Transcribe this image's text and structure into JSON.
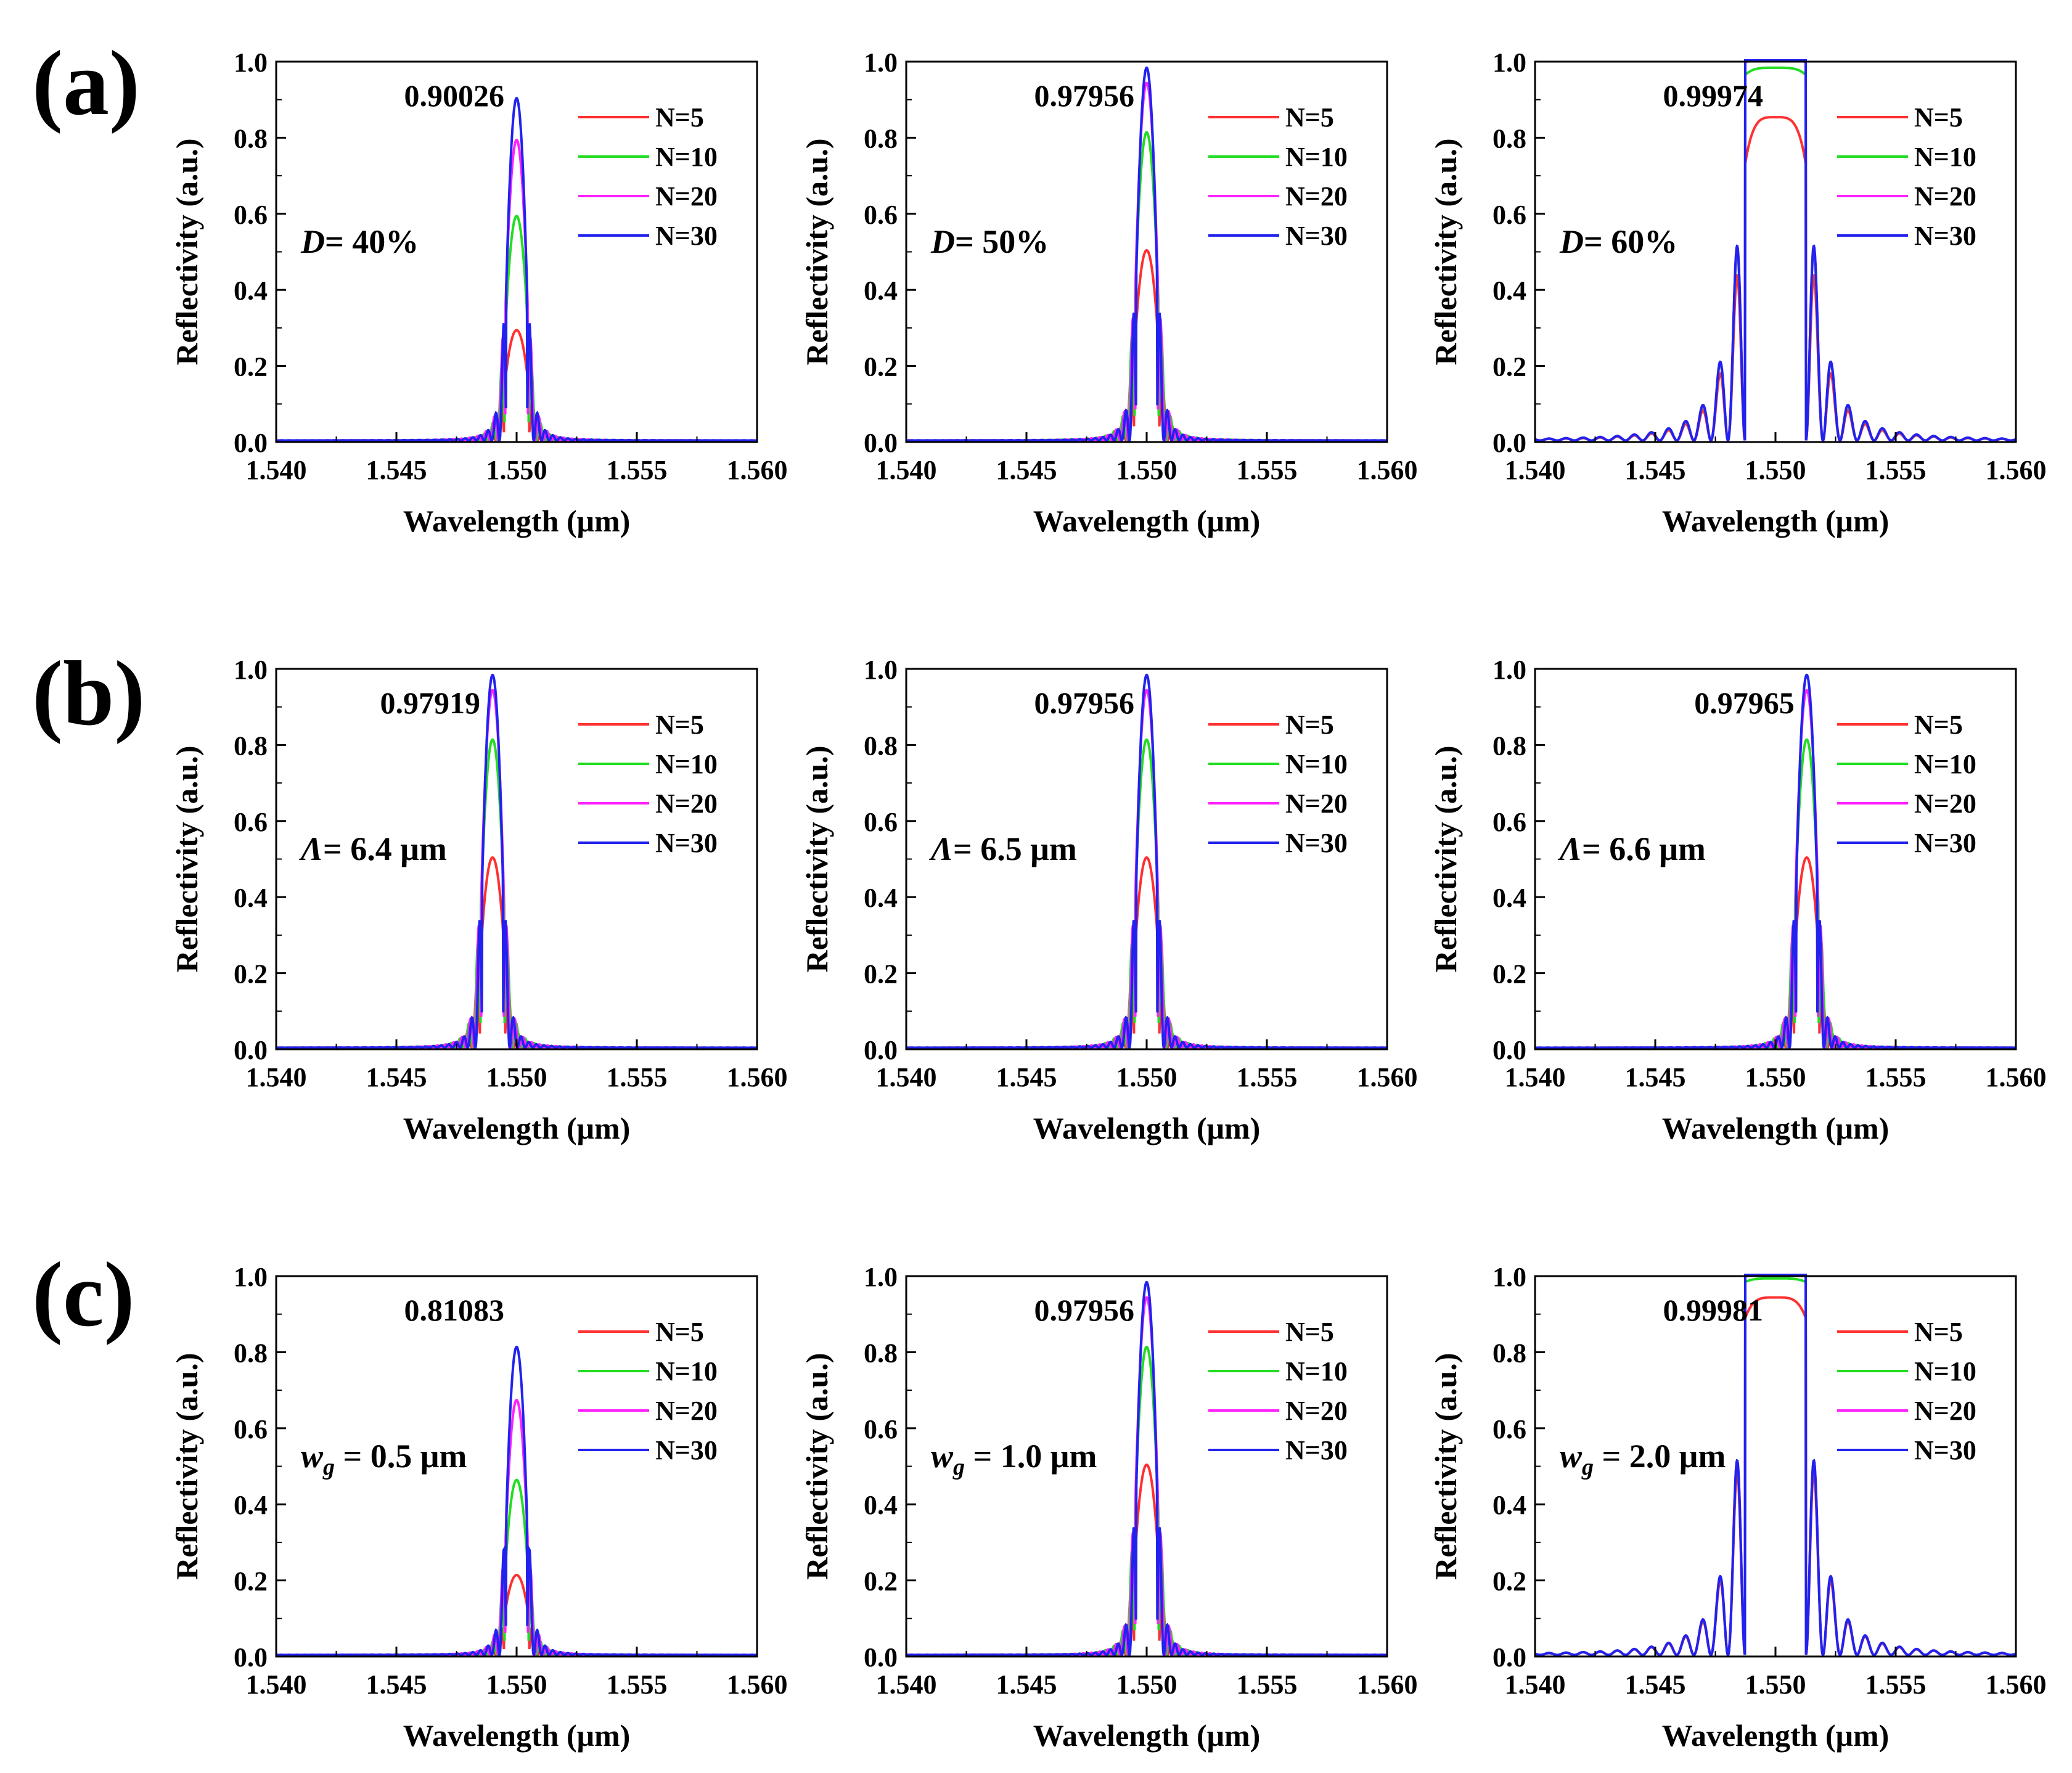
{
  "figure": {
    "rows": [
      {
        "label": "(a)"
      },
      {
        "label": "(b)"
      },
      {
        "label": "(c)"
      }
    ]
  },
  "chart_data": [
    {
      "type": "line",
      "row": "(a)",
      "panel": 1,
      "title": "",
      "xlabel": "Wavelength (μm)",
      "ylabel": "Reflectivity (a.u.)",
      "xlim": [
        1.54,
        1.56
      ],
      "ylim": [
        0.0,
        1.0
      ],
      "xticks": [
        "1.540",
        "1.545",
        "1.550",
        "1.555",
        "1.560"
      ],
      "yticks": [
        "0.0",
        "0.2",
        "0.4",
        "0.6",
        "0.8",
        "1.0"
      ],
      "peak_label": "0.90026",
      "param": {
        "sym": "D",
        "eq": "= 40%",
        "sub": ""
      },
      "center": 1.55,
      "flat": false,
      "legend_position": "top-right",
      "series": [
        {
          "name": "N=5",
          "color": "#ff3030",
          "peak": 0.29
        },
        {
          "name": "N=10",
          "color": "#22dd22",
          "peak": 0.59
        },
        {
          "name": "N=20",
          "color": "#ff22ff",
          "peak": 0.79
        },
        {
          "name": "N=30",
          "color": "#2222ee",
          "peak": 0.9
        }
      ]
    },
    {
      "type": "line",
      "row": "(a)",
      "panel": 2,
      "title": "",
      "xlabel": "Wavelength (μm)",
      "ylabel": "Reflectivity (a.u.)",
      "xlim": [
        1.54,
        1.56
      ],
      "ylim": [
        0.0,
        1.0
      ],
      "xticks": [
        "1.540",
        "1.545",
        "1.550",
        "1.555",
        "1.560"
      ],
      "yticks": [
        "0.0",
        "0.2",
        "0.4",
        "0.6",
        "0.8",
        "1.0"
      ],
      "peak_label": "0.97956",
      "param": {
        "sym": "D",
        "eq": "= 50%",
        "sub": ""
      },
      "center": 1.55,
      "flat": false,
      "legend_position": "top-right",
      "series": [
        {
          "name": "N=5",
          "color": "#ff3030",
          "peak": 0.5
        },
        {
          "name": "N=10",
          "color": "#22dd22",
          "peak": 0.81
        },
        {
          "name": "N=20",
          "color": "#ff22ff",
          "peak": 0.94
        },
        {
          "name": "N=30",
          "color": "#2222ee",
          "peak": 0.98
        }
      ]
    },
    {
      "type": "line",
      "row": "(a)",
      "panel": 3,
      "title": "",
      "xlabel": "Wavelength (μm)",
      "ylabel": "Reflectivity (a.u.)",
      "xlim": [
        1.54,
        1.56
      ],
      "ylim": [
        0.0,
        1.0
      ],
      "xticks": [
        "1.540",
        "1.545",
        "1.550",
        "1.555",
        "1.560"
      ],
      "yticks": [
        "0.0",
        "0.2",
        "0.4",
        "0.6",
        "0.8",
        "1.0"
      ],
      "peak_label": "0.99974",
      "param": {
        "sym": "D",
        "eq": "= 60%",
        "sub": ""
      },
      "center": 1.55,
      "flat": true,
      "legend_position": "top-right",
      "series": [
        {
          "name": "N=5",
          "color": "#ff3030",
          "peak": 0.85
        },
        {
          "name": "N=10",
          "color": "#22dd22",
          "peak": 0.98
        },
        {
          "name": "N=20",
          "color": "#ff22ff",
          "peak": 0.998
        },
        {
          "name": "N=30",
          "color": "#2222ee",
          "peak": 1.0
        }
      ]
    },
    {
      "type": "line",
      "row": "(b)",
      "panel": 1,
      "title": "",
      "xlabel": "Wavelength (μm)",
      "ylabel": "Reflectivity (a.u.)",
      "xlim": [
        1.54,
        1.56
      ],
      "ylim": [
        0.0,
        1.0
      ],
      "xticks": [
        "1.540",
        "1.545",
        "1.550",
        "1.555",
        "1.560"
      ],
      "yticks": [
        "0.0",
        "0.2",
        "0.4",
        "0.6",
        "0.8",
        "1.0"
      ],
      "peak_label": "0.97919",
      "param": {
        "sym": "Λ",
        "eq": "= 6.4 μm",
        "sub": ""
      },
      "center": 1.549,
      "flat": false,
      "legend_position": "top-right",
      "series": [
        {
          "name": "N=5",
          "color": "#ff3030",
          "peak": 0.5
        },
        {
          "name": "N=10",
          "color": "#22dd22",
          "peak": 0.81
        },
        {
          "name": "N=20",
          "color": "#ff22ff",
          "peak": 0.94
        },
        {
          "name": "N=30",
          "color": "#2222ee",
          "peak": 0.98
        }
      ]
    },
    {
      "type": "line",
      "row": "(b)",
      "panel": 2,
      "title": "",
      "xlabel": "Wavelength (μm)",
      "ylabel": "Reflectivity (a.u.)",
      "xlim": [
        1.54,
        1.56
      ],
      "ylim": [
        0.0,
        1.0
      ],
      "xticks": [
        "1.540",
        "1.545",
        "1.550",
        "1.555",
        "1.560"
      ],
      "yticks": [
        "0.0",
        "0.2",
        "0.4",
        "0.6",
        "0.8",
        "1.0"
      ],
      "peak_label": "0.97956",
      "param": {
        "sym": "Λ",
        "eq": "= 6.5 μm",
        "sub": ""
      },
      "center": 1.55,
      "flat": false,
      "legend_position": "top-right",
      "series": [
        {
          "name": "N=5",
          "color": "#ff3030",
          "peak": 0.5
        },
        {
          "name": "N=10",
          "color": "#22dd22",
          "peak": 0.81
        },
        {
          "name": "N=20",
          "color": "#ff22ff",
          "peak": 0.94
        },
        {
          "name": "N=30",
          "color": "#2222ee",
          "peak": 0.98
        }
      ]
    },
    {
      "type": "line",
      "row": "(b)",
      "panel": 3,
      "title": "",
      "xlabel": "Wavelength (μm)",
      "ylabel": "Reflectivity (a.u.)",
      "xlim": [
        1.54,
        1.56
      ],
      "ylim": [
        0.0,
        1.0
      ],
      "xticks": [
        "1.540",
        "1.545",
        "1.550",
        "1.555",
        "1.560"
      ],
      "yticks": [
        "0.0",
        "0.2",
        "0.4",
        "0.6",
        "0.8",
        "1.0"
      ],
      "peak_label": "0.97965",
      "param": {
        "sym": "Λ",
        "eq": "= 6.6 μm",
        "sub": ""
      },
      "center": 1.5513,
      "flat": false,
      "legend_position": "top-right",
      "series": [
        {
          "name": "N=5",
          "color": "#ff3030",
          "peak": 0.5
        },
        {
          "name": "N=10",
          "color": "#22dd22",
          "peak": 0.81
        },
        {
          "name": "N=20",
          "color": "#ff22ff",
          "peak": 0.94
        },
        {
          "name": "N=30",
          "color": "#2222ee",
          "peak": 0.98
        }
      ]
    },
    {
      "type": "line",
      "row": "(c)",
      "panel": 1,
      "title": "",
      "xlabel": "Wavelength (μm)",
      "ylabel": "Reflectivity (a.u.)",
      "xlim": [
        1.54,
        1.56
      ],
      "ylim": [
        0.0,
        1.0
      ],
      "xticks": [
        "1.540",
        "1.545",
        "1.550",
        "1.555",
        "1.560"
      ],
      "yticks": [
        "0.0",
        "0.2",
        "0.4",
        "0.6",
        "0.8",
        "1.0"
      ],
      "peak_label": "0.81083",
      "param": {
        "sym": "w",
        "eq": " = 0.5 μm",
        "sub": "g"
      },
      "center": 1.55,
      "flat": false,
      "legend_position": "top-right",
      "series": [
        {
          "name": "N=5",
          "color": "#ff3030",
          "peak": 0.21
        },
        {
          "name": "N=10",
          "color": "#22dd22",
          "peak": 0.46
        },
        {
          "name": "N=20",
          "color": "#ff22ff",
          "peak": 0.67
        },
        {
          "name": "N=30",
          "color": "#2222ee",
          "peak": 0.81
        }
      ]
    },
    {
      "type": "line",
      "row": "(c)",
      "panel": 2,
      "title": "",
      "xlabel": "Wavelength (μm)",
      "ylabel": "Reflectivity (a.u.)",
      "xlim": [
        1.54,
        1.56
      ],
      "ylim": [
        0.0,
        1.0
      ],
      "xticks": [
        "1.540",
        "1.545",
        "1.550",
        "1.555",
        "1.560"
      ],
      "yticks": [
        "0.0",
        "0.2",
        "0.4",
        "0.6",
        "0.8",
        "1.0"
      ],
      "peak_label": "0.97956",
      "param": {
        "sym": "w",
        "eq": " = 1.0 μm",
        "sub": "g"
      },
      "center": 1.55,
      "flat": false,
      "legend_position": "top-right",
      "series": [
        {
          "name": "N=5",
          "color": "#ff3030",
          "peak": 0.5
        },
        {
          "name": "N=10",
          "color": "#22dd22",
          "peak": 0.81
        },
        {
          "name": "N=20",
          "color": "#ff22ff",
          "peak": 0.94
        },
        {
          "name": "N=30",
          "color": "#2222ee",
          "peak": 0.98
        }
      ]
    },
    {
      "type": "line",
      "row": "(c)",
      "panel": 3,
      "title": "",
      "xlabel": "Wavelength (μm)",
      "ylabel": "Reflectivity (a.u.)",
      "xlim": [
        1.54,
        1.56
      ],
      "ylim": [
        0.0,
        1.0
      ],
      "xticks": [
        "1.540",
        "1.545",
        "1.550",
        "1.555",
        "1.560"
      ],
      "yticks": [
        "0.0",
        "0.2",
        "0.4",
        "0.6",
        "0.8",
        "1.0"
      ],
      "peak_label": "0.99981",
      "param": {
        "sym": "w",
        "eq": " = 2.0 μm",
        "sub": "g"
      },
      "center": 1.55,
      "flat": true,
      "legend_position": "top-right",
      "series": [
        {
          "name": "N=5",
          "color": "#ff3030",
          "peak": 0.94
        },
        {
          "name": "N=10",
          "color": "#22dd22",
          "peak": 0.99
        },
        {
          "name": "N=20",
          "color": "#ff22ff",
          "peak": 0.999
        },
        {
          "name": "N=30",
          "color": "#2222ee",
          "peak": 1.0
        }
      ]
    }
  ]
}
